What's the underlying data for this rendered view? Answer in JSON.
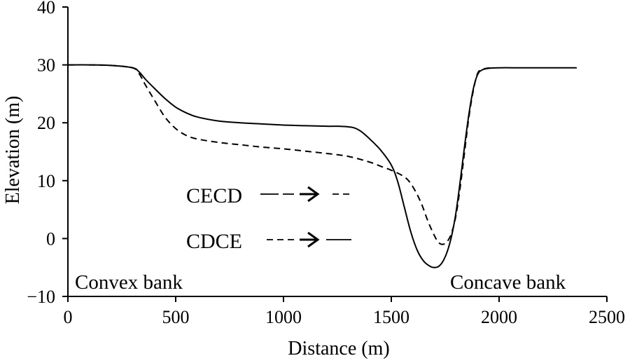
{
  "chart_data": {
    "type": "line",
    "title": "",
    "xlabel": "Distance (m)",
    "ylabel": "Elevation (m)",
    "xlim": [
      0,
      2500
    ],
    "ylim": [
      -10,
      40
    ],
    "x_ticks": [
      0,
      500,
      1000,
      1500,
      2000,
      2500
    ],
    "y_ticks": [
      -10,
      0,
      10,
      20,
      30,
      40
    ],
    "x_tick_labels": [
      "0",
      "500",
      "1000",
      "1500",
      "2000",
      "2500"
    ],
    "y_tick_labels": [
      "−10",
      "0",
      "10",
      "20",
      "30",
      "40"
    ],
    "grid": false,
    "series": [
      {
        "style": "solid",
        "x": [
          0,
          100,
          200,
          300,
          330,
          360,
          400,
          450,
          500,
          550,
          600,
          700,
          800,
          900,
          1000,
          1100,
          1200,
          1250,
          1300,
          1330,
          1360,
          1400,
          1450,
          1500,
          1530,
          1560,
          1590,
          1620,
          1650,
          1680,
          1700,
          1720,
          1740,
          1760,
          1780,
          1800,
          1820,
          1840,
          1860,
          1880,
          1900,
          1920,
          1950,
          2000,
          2100,
          2200,
          2300,
          2360
        ],
        "y": [
          30.0,
          30.0,
          29.9,
          29.5,
          28.8,
          27.5,
          26.0,
          24.2,
          22.7,
          21.7,
          21.0,
          20.3,
          20.0,
          19.8,
          19.6,
          19.5,
          19.4,
          19.4,
          19.3,
          19.1,
          18.5,
          17.2,
          15.3,
          12.7,
          9.8,
          5.5,
          1.2,
          -2.0,
          -3.9,
          -4.8,
          -5.0,
          -4.8,
          -3.9,
          -2.2,
          0.5,
          4.5,
          10.0,
          16.0,
          21.5,
          25.8,
          28.3,
          29.1,
          29.4,
          29.5,
          29.5,
          29.5,
          29.5,
          29.5
        ]
      },
      {
        "style": "dashed",
        "x": [
          0,
          100,
          200,
          300,
          330,
          360,
          400,
          450,
          500,
          550,
          600,
          700,
          800,
          900,
          1000,
          1100,
          1200,
          1300,
          1400,
          1450,
          1500,
          1550,
          1580,
          1610,
          1640,
          1670,
          1700,
          1720,
          1740,
          1760,
          1780,
          1800,
          1820,
          1840,
          1860,
          1880,
          1900,
          1920,
          1940,
          1960
        ],
        "y": [
          30.0,
          30.0,
          29.9,
          29.5,
          28.5,
          26.5,
          24.0,
          21.0,
          19.0,
          17.8,
          17.2,
          16.6,
          16.2,
          15.8,
          15.5,
          15.1,
          14.7,
          14.2,
          13.2,
          12.5,
          11.8,
          10.9,
          10.0,
          8.3,
          6.0,
          3.0,
          0.5,
          -0.7,
          -1.0,
          -0.5,
          1.0,
          4.0,
          9.0,
          15.0,
          21.0,
          25.5,
          28.5,
          29.2,
          29.4,
          29.5
        ]
      }
    ],
    "annotations": [
      {
        "text": "Convex bank"
      },
      {
        "text": "Concave bank"
      }
    ],
    "legend": [
      {
        "label": "CECD",
        "from_style": "long-dash",
        "to_style": "dashed"
      },
      {
        "label": "CDCE",
        "from_style": "dashed",
        "to_style": "solid"
      }
    ]
  }
}
